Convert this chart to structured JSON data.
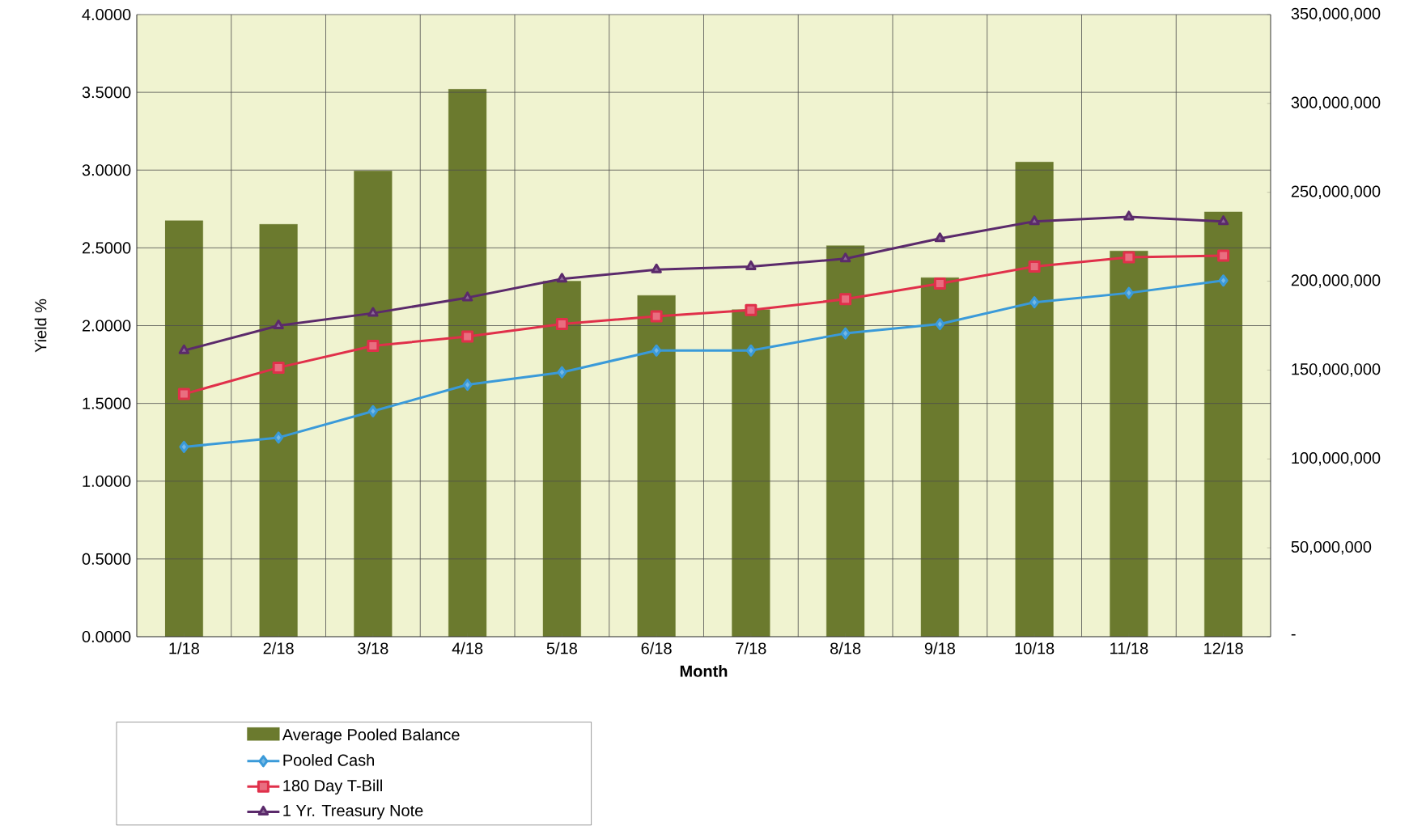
{
  "chart_data": {
    "type": "line",
    "xlabel": "Month",
    "ylabel": "Yield %",
    "categories": [
      "1/18",
      "2/18",
      "3/18",
      "4/18",
      "5/18",
      "6/18",
      "7/18",
      "8/18",
      "9/18",
      "10/18",
      "11/18",
      "12/18"
    ],
    "series": [
      {
        "name": "Average Pooled Balance",
        "type": "bar",
        "axis": "y2",
        "color": "#6b7a2e",
        "values": [
          234000000,
          232000000,
          262000000,
          308000000,
          200000000,
          192000000,
          184000000,
          220000000,
          202000000,
          267000000,
          217000000,
          239000000
        ]
      },
      {
        "name": "Pooled Cash",
        "color": "#3a9ad9",
        "marker": "diamond",
        "values": [
          1.22,
          1.28,
          1.45,
          1.62,
          1.7,
          1.84,
          1.84,
          1.95,
          2.01,
          2.15,
          2.21,
          2.29
        ]
      },
      {
        "name": "180 Day T-Bill",
        "color": "#e0304a",
        "marker": "square",
        "values": [
          1.56,
          1.73,
          1.87,
          1.93,
          2.01,
          2.06,
          2.1,
          2.17,
          2.27,
          2.38,
          2.44,
          2.45
        ]
      },
      {
        "name": "1 Yr. Treasury Note",
        "color": "#5b2a6b",
        "marker": "triangle",
        "values": [
          1.84,
          2.0,
          2.08,
          2.18,
          2.3,
          2.36,
          2.38,
          2.43,
          2.56,
          2.67,
          2.7,
          2.67
        ]
      }
    ],
    "ylim": [
      0,
      4
    ],
    "yticks": [
      {
        "value": 0,
        "label": "0.0000"
      },
      {
        "value": 0.5,
        "label": "0.5000"
      },
      {
        "value": 1,
        "label": "1.0000"
      },
      {
        "value": 1.5,
        "label": "1.5000"
      },
      {
        "value": 2,
        "label": "2.0000"
      },
      {
        "value": 2.5,
        "label": "2.5000"
      },
      {
        "value": 3,
        "label": "3.0000"
      },
      {
        "value": 3.5,
        "label": "3.5000"
      },
      {
        "value": 4,
        "label": "4.0000"
      }
    ],
    "y2lim": [
      0,
      350000000
    ],
    "y2ticks": [
      {
        "value": 0,
        "label": "-"
      },
      {
        "value": 50000000,
        "label": "50,000,000"
      },
      {
        "value": 100000000,
        "label": "100,000,000"
      },
      {
        "value": 150000000,
        "label": "150,000,000"
      },
      {
        "value": 200000000,
        "label": "200,000,000"
      },
      {
        "value": 250000000,
        "label": "250,000,000"
      },
      {
        "value": 300000000,
        "label": "300,000,000"
      },
      {
        "value": 350000000,
        "label": "350,000,000"
      }
    ],
    "grid": true,
    "legend": "bottom left"
  }
}
